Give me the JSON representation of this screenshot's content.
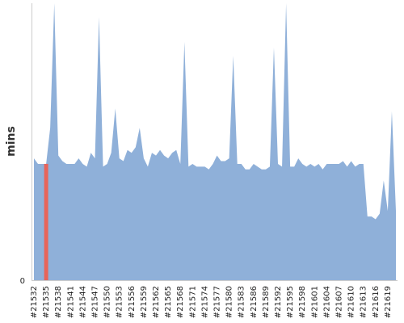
{
  "chart_data": {
    "type": "area",
    "ylabel": "mins",
    "y_tick_labels": [
      "0"
    ],
    "x_tick_labels": [
      "#21532",
      "#21535",
      "#21538",
      "#21541",
      "#21544",
      "#21547",
      "#21550",
      "#21553",
      "#21556",
      "#21559",
      "#21562",
      "#21565",
      "#21568",
      "#21571",
      "#21574",
      "#21577",
      "#21580",
      "#21583",
      "#21586",
      "#21589",
      "#21592",
      "#21595",
      "#21598",
      "#21601",
      "#21604",
      "#21607",
      "#21610",
      "#21613",
      "#21616",
      "#21619"
    ],
    "x_start": 21532,
    "x_end": 21621,
    "ylim": [
      0,
      100
    ],
    "grid": false,
    "highlight": {
      "build": "#21535",
      "color": "#e8645a"
    },
    "series": [
      {
        "color": "#8fb0d9",
        "values": [
          44,
          42,
          42,
          42,
          55,
          100,
          45,
          43,
          42,
          42,
          42,
          44,
          42,
          41,
          46,
          44,
          95,
          41,
          42,
          46,
          62,
          44,
          43,
          47,
          46,
          48,
          55,
          44,
          41,
          46,
          45,
          47,
          45,
          44,
          46,
          47,
          42,
          86,
          41,
          42,
          41,
          41,
          41,
          40,
          42,
          45,
          43,
          43,
          44,
          81,
          42,
          42,
          40,
          40,
          42,
          41,
          40,
          40,
          41,
          84,
          42,
          41,
          100,
          41,
          41,
          44,
          42,
          41,
          42,
          41,
          42,
          40,
          42,
          42,
          42,
          42,
          43,
          41,
          43,
          41,
          42,
          42,
          23,
          23,
          22,
          24,
          36,
          25,
          61,
          25
        ]
      }
    ]
  }
}
